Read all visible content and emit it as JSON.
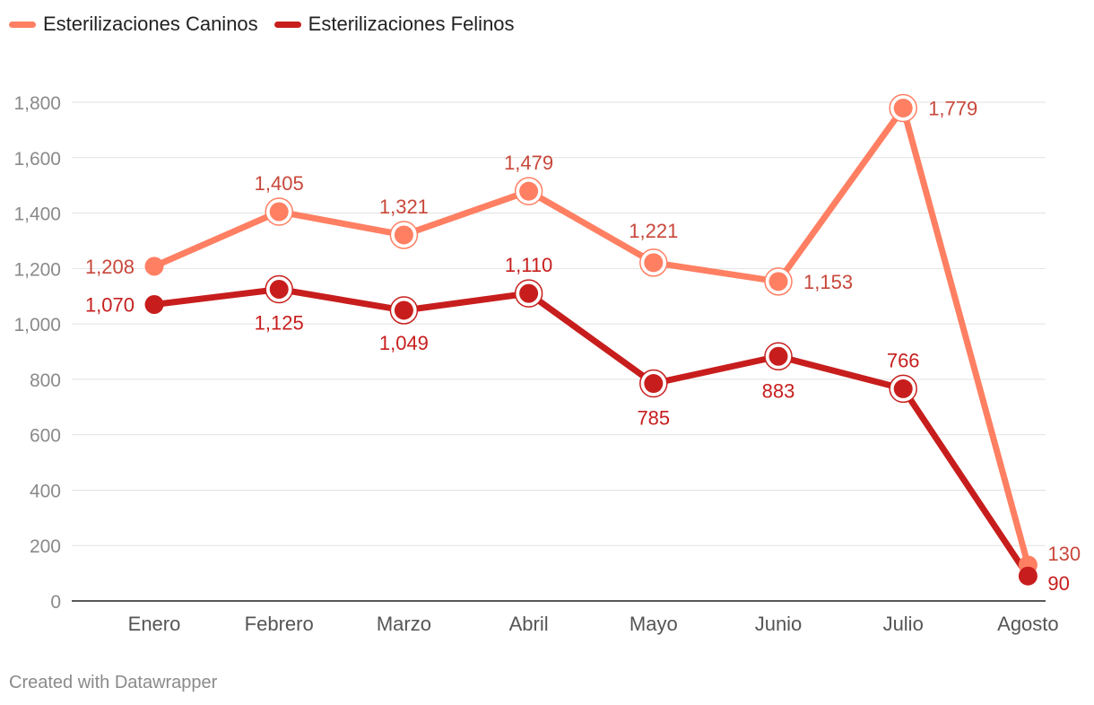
{
  "legend": {
    "items": [
      {
        "label": "Esterilizaciones Caninos",
        "color": "#ff7f63"
      },
      {
        "label": "Esterilizaciones Felinos",
        "color": "#c71e1d"
      }
    ]
  },
  "footer": {
    "credit": "Created with Datawrapper"
  },
  "chart_data": {
    "type": "line",
    "categories": [
      "Enero",
      "Febrero",
      "Marzo",
      "Abril",
      "Mayo",
      "Junio",
      "Julio",
      "Agosto"
    ],
    "series": [
      {
        "name": "Esterilizaciones Caninos",
        "color": "#ff7f63",
        "label_color": "#c8473a",
        "values": [
          1208,
          1405,
          1321,
          1479,
          1221,
          1153,
          1779,
          130
        ],
        "labels": [
          "1,208",
          "1,405",
          "1,321",
          "1,479",
          "1,221",
          "1,153",
          "1,779",
          "130"
        ]
      },
      {
        "name": "Esterilizaciones Felinos",
        "color": "#c71e1d",
        "label_color": "#c71e1d",
        "values": [
          1070,
          1125,
          1049,
          1110,
          785,
          883,
          766,
          90
        ],
        "labels": [
          "1,070",
          "1,125",
          "1,049",
          "1,110",
          "785",
          "883",
          "766",
          "90"
        ]
      }
    ],
    "yticks": [
      0,
      200,
      400,
      600,
      800,
      1000,
      1200,
      1400,
      1600,
      1800
    ],
    "ytick_labels": [
      "0",
      "200",
      "400",
      "600",
      "800",
      "1,000",
      "1,200",
      "1,400",
      "1,600",
      "1,800"
    ],
    "ylim": [
      0,
      1800
    ],
    "grid": true,
    "legend_position": "top-left"
  }
}
